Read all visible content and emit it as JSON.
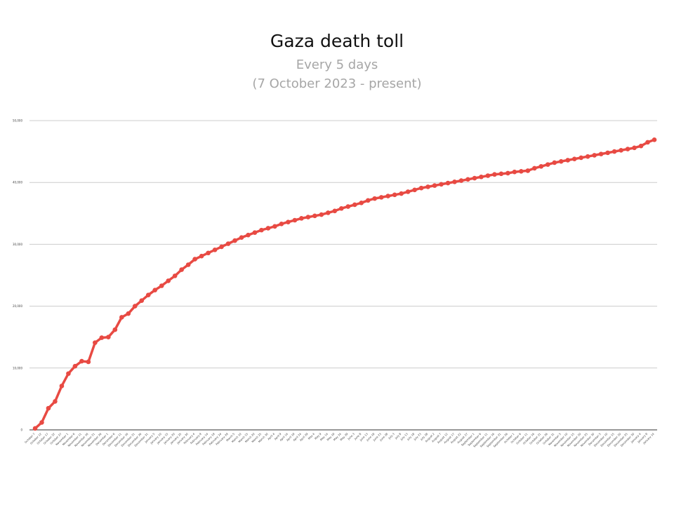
{
  "chart_data": {
    "type": "line",
    "title": "Gaza death toll",
    "subtitle_lines": [
      "Every 5 days",
      "(7 October 2023 - present)"
    ],
    "xlabel": "",
    "ylabel": "",
    "ylim": [
      0,
      50000
    ],
    "yticks": [
      0,
      10000,
      20000,
      30000,
      40000,
      50000
    ],
    "ytick_labels": [
      "0",
      "10,000",
      "20,000",
      "30,000",
      "40,000",
      "50,000"
    ],
    "grid": true,
    "legend": "none",
    "line_color": "#e84a43",
    "x_labels": [
      "October 7",
      "October 12",
      "October 17",
      "October 22",
      "October 27",
      "November 1",
      "November 6",
      "November 11",
      "November 16",
      "November 21",
      "November 26",
      "December 1",
      "December 6",
      "December 11",
      "December 16",
      "December 21",
      "December 26",
      "December 31",
      "January 5",
      "January 10",
      "January 15",
      "January 20",
      "January 25",
      "January 30",
      "February 4",
      "February 9",
      "February 14",
      "February 19",
      "February 24",
      "February 29",
      "March 5",
      "March 10",
      "March 15",
      "March 20",
      "March 25",
      "March 30",
      "April 4",
      "April 9",
      "April 14",
      "April 19",
      "April 24",
      "April 29",
      "May 4",
      "May 9",
      "May 14",
      "May 19",
      "May 24",
      "May 29",
      "June 3",
      "June 8",
      "June 13",
      "June 18",
      "June 23",
      "June 28",
      "July 3",
      "July 8",
      "July 13",
      "July 18",
      "July 23",
      "July 28",
      "August 2",
      "August 7",
      "August 12",
      "August 17",
      "August 22",
      "August 27",
      "September 1",
      "September 6",
      "September 11",
      "September 16",
      "September 21",
      "September 26",
      "October 1",
      "October 6",
      "October 11",
      "October 16",
      "October 21",
      "October 26",
      "October 31",
      "November 5",
      "November 10",
      "November 15",
      "November 20",
      "November 25",
      "November 30",
      "December 5",
      "December 10",
      "December 15",
      "December 20",
      "December 25",
      "December 30",
      "January 4",
      "January 9",
      "January 14"
    ],
    "series": [
      {
        "values": [
          232,
          1200,
          3500,
          4600,
          7100,
          9100,
          10300,
          11100,
          11000,
          14100,
          14900,
          15000,
          16200,
          18200,
          18800,
          20000,
          20900,
          21800,
          22600,
          23300,
          24100,
          24900,
          25900,
          26700,
          27600,
          28100,
          28600,
          29100,
          29600,
          30100,
          30600,
          31100,
          31500,
          31900,
          32300,
          32600,
          32900,
          33300,
          33600,
          33900,
          34200,
          34400,
          34600,
          34800,
          35100,
          35400,
          35800,
          36100,
          36400,
          36700,
          37100,
          37400,
          37600,
          37800,
          38000,
          38200,
          38500,
          38800,
          39100,
          39300,
          39500,
          39700,
          39900,
          40100,
          40300,
          40500,
          40700,
          40900,
          41100,
          41300,
          41400,
          41500,
          41700,
          41800,
          41900,
          42300,
          42600,
          42900,
          43200,
          43400,
          43600,
          43800,
          44000,
          44200,
          44400,
          44600,
          44800,
          45000,
          45200,
          45400,
          45600,
          45900,
          46500,
          46900
        ]
      }
    ]
  }
}
